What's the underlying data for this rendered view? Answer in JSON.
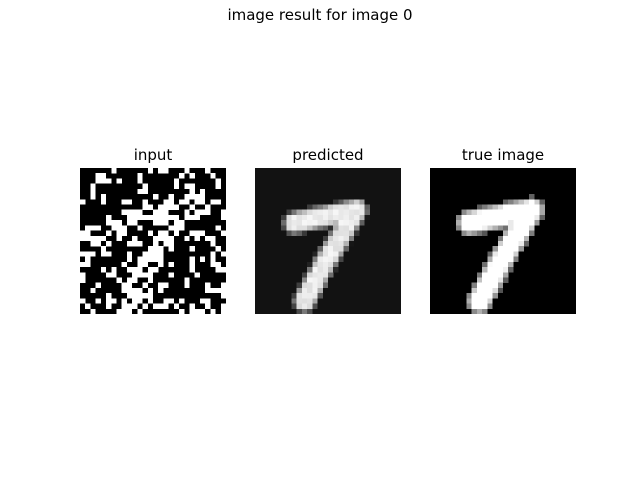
{
  "figure": {
    "suptitle": "image result for image 0"
  },
  "chart_data": [
    {
      "type": "heatmap",
      "title": "input",
      "colormap": "gray",
      "grid": false,
      "axes_visible": false,
      "shape": [
        28,
        28
      ],
      "description": "noisy binarized input image of digit 7"
    },
    {
      "type": "heatmap",
      "title": "predicted",
      "colormap": "gray",
      "grid": false,
      "axes_visible": false,
      "shape": [
        28,
        28
      ],
      "description": "reconstructed blurry digit 7"
    },
    {
      "type": "heatmap",
      "title": "true image",
      "colormap": "gray",
      "grid": false,
      "axes_visible": false,
      "shape": [
        28,
        28
      ],
      "description": "ground truth digit 7"
    }
  ]
}
